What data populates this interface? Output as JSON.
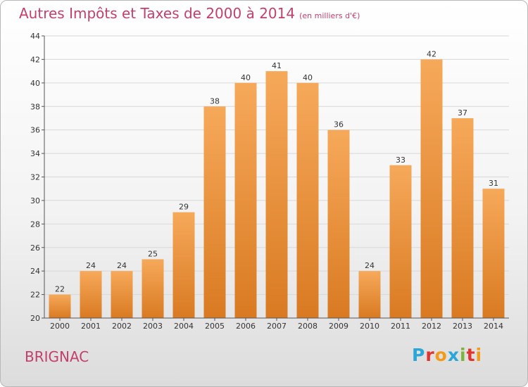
{
  "title": "Autres Impôts et Taxes de 2000 à 2014",
  "unit": "(en milliers d'€)",
  "commune": "BRIGNAC",
  "logo": {
    "letters": [
      "P",
      "r",
      "o",
      "x",
      "i",
      "t",
      "i"
    ],
    "colors": [
      "#2aa7d8",
      "#e2332f",
      "#f39a1b",
      "#2aa7d8",
      "#7ab43c",
      "#e2332f",
      "#f39a1b"
    ]
  },
  "colors": {
    "title": "#c2406a",
    "bar_top": "#f6a95a",
    "bar_bottom": "#d97a22",
    "grid": "#d8d8d8",
    "axis": "#555555"
  },
  "chart_data": {
    "type": "bar",
    "categories": [
      "2000",
      "2001",
      "2002",
      "2003",
      "2004",
      "2005",
      "2006",
      "2007",
      "2008",
      "2009",
      "2010",
      "2011",
      "2012",
      "2013",
      "2014"
    ],
    "values": [
      22,
      24,
      24,
      25,
      29,
      38,
      40,
      41,
      40,
      36,
      24,
      33,
      42,
      37,
      31
    ],
    "yticks": [
      "20",
      "22",
      "24",
      "26",
      "28",
      "30",
      "32",
      "34",
      "36",
      "38",
      "40",
      "42",
      "44"
    ],
    "ylim": [
      20,
      44
    ],
    "grid": true,
    "xlabel": "",
    "ylabel": ""
  }
}
